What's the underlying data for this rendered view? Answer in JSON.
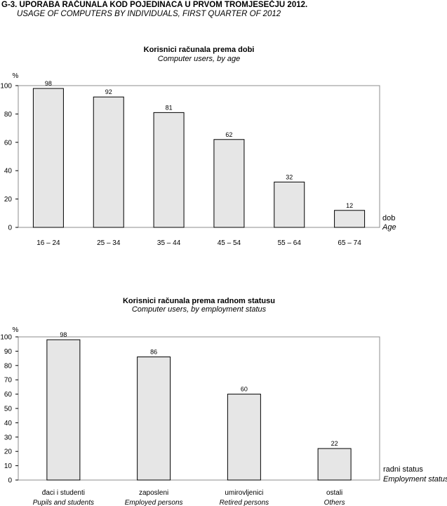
{
  "figure": {
    "title": "G-3.  UPORABA RAČUNALA KOD POJEDINACA U PRVOM TROMJESEČJU 2012.",
    "subtitle": "USAGE OF COMPUTERS BY INDIVIDUALS, FIRST QUARTER OF 2012"
  },
  "chart_data": [
    {
      "type": "bar",
      "title": "Korisnici računala prema dobi",
      "subtitle": "Computer users, by age",
      "ylabel": "%",
      "xlabel": "dob",
      "xlabel_en": "Age",
      "categories": [
        "16 – 24",
        "25 – 34",
        "35 – 44",
        "45 – 54",
        "55 – 64",
        "65 – 74"
      ],
      "values": [
        98,
        92,
        81,
        62,
        32,
        12
      ],
      "ylim": [
        0,
        100
      ],
      "yticks": [
        0,
        20,
        40,
        60,
        80,
        100
      ],
      "grid": false,
      "bar_color": "#e6e6e6"
    },
    {
      "type": "bar",
      "title": "Korisnici računala prema radnom statusu",
      "subtitle": "Computer users, by employment status",
      "ylabel": "%",
      "xlabel": "radni status",
      "xlabel_en": "Employment status",
      "categories": [
        "đaci i studenti",
        "zaposleni",
        "umirovljenici",
        "ostali"
      ],
      "categories_en": [
        "Pupils and students",
        "Employed persons",
        "Retired persons",
        "Others"
      ],
      "values": [
        98,
        86,
        60,
        22
      ],
      "ylim": [
        0,
        100
      ],
      "yticks": [
        0,
        10,
        20,
        30,
        40,
        50,
        60,
        70,
        80,
        90,
        100
      ],
      "grid": false,
      "bar_color": "#e6e6e6"
    }
  ]
}
